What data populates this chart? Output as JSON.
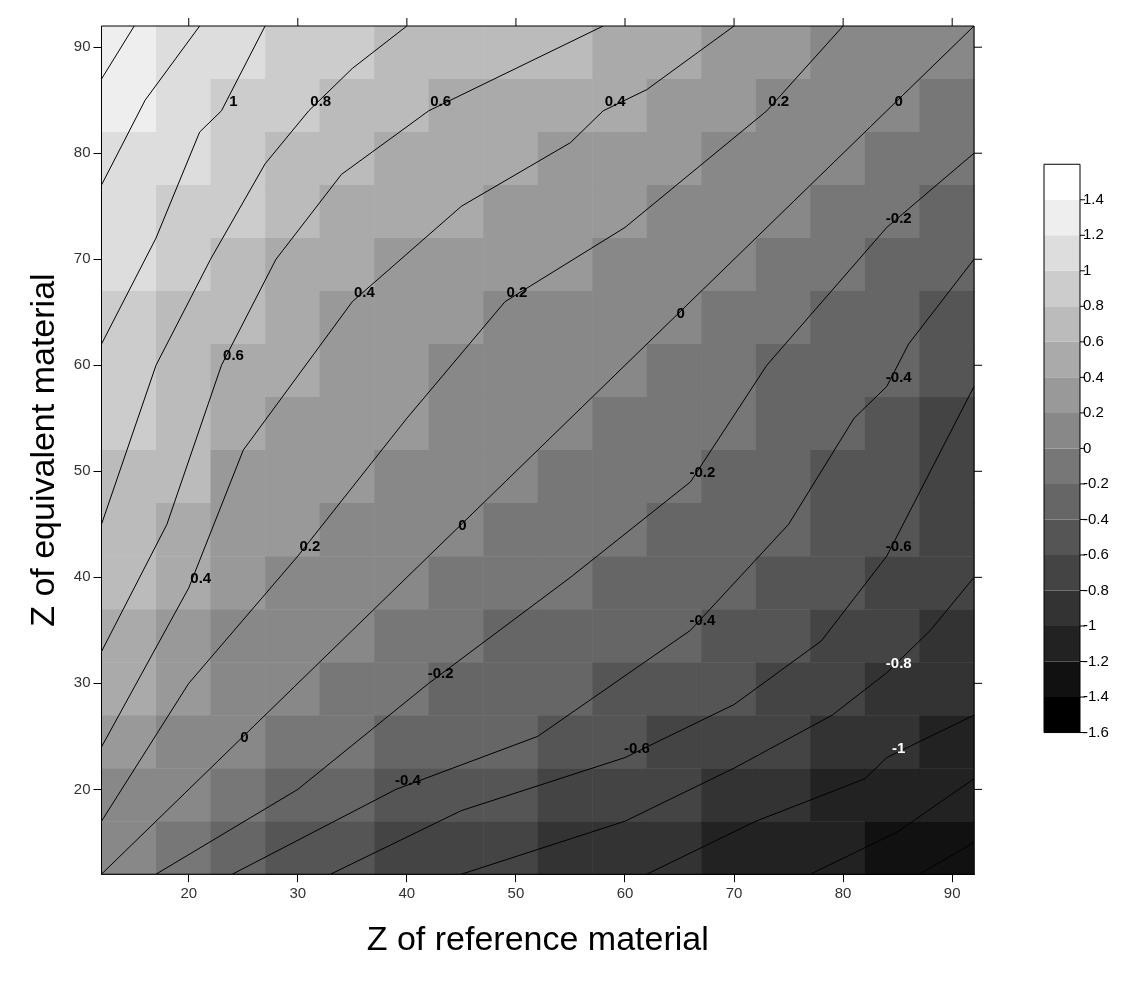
{
  "chart_data": {
    "type": "heatmap",
    "xlabel": "Z of reference material",
    "ylabel": "Z of equivalent material",
    "xlim": [
      12,
      92
    ],
    "ylim": [
      12,
      92
    ],
    "xticks": [
      20,
      30,
      40,
      50,
      60,
      70,
      80,
      90
    ],
    "yticks": [
      20,
      30,
      40,
      50,
      60,
      70,
      80,
      90
    ],
    "clim": [
      -1.6,
      1.6
    ],
    "cticks": [
      -1.6,
      -1.4,
      -1.2,
      -1,
      -0.8,
      -0.6,
      -0.4,
      -0.2,
      0,
      0.2,
      0.4,
      0.6,
      0.8,
      1,
      1.2,
      1.4
    ],
    "marker": "none",
    "cells": [
      [
        1.36,
        1.18,
        1.02,
        0.93,
        0.84,
        0.77,
        0.72,
        0.66,
        0.61,
        0.53,
        0.44,
        0.35,
        0.26,
        0.17,
        0.09,
        0
      ],
      [
        1.25,
        1.09,
        0.96,
        0.85,
        0.75,
        0.66,
        0.58,
        0.52,
        0.46,
        0.4,
        0.33,
        0.26,
        0.18,
        0.09,
        0,
        -0.09
      ],
      [
        1.16,
        1.01,
        0.88,
        0.75,
        0.63,
        0.56,
        0.5,
        0.44,
        0.37,
        0.3,
        0.24,
        0.17,
        0.09,
        0,
        -0.09,
        -0.17
      ],
      [
        1.1,
        0.95,
        0.8,
        0.66,
        0.55,
        0.47,
        0.4,
        0.34,
        0.29,
        0.23,
        0.16,
        0.08,
        0,
        -0.09,
        -0.18,
        -0.26
      ],
      [
        1.03,
        0.88,
        0.71,
        0.57,
        0.48,
        0.39,
        0.33,
        0.26,
        0.2,
        0.13,
        0.07,
        0,
        -0.08,
        -0.17,
        -0.26,
        -0.35
      ],
      [
        0.96,
        0.79,
        0.63,
        0.5,
        0.39,
        0.32,
        0.25,
        0.18,
        0.12,
        0.06,
        0,
        -0.07,
        -0.16,
        -0.24,
        -0.33,
        -0.44
      ],
      [
        0.88,
        0.71,
        0.56,
        0.42,
        0.34,
        0.26,
        0.19,
        0.13,
        0.06,
        0,
        -0.06,
        -0.13,
        -0.23,
        -0.3,
        -0.4,
        -0.53
      ],
      [
        0.82,
        0.66,
        0.48,
        0.36,
        0.28,
        0.2,
        0.13,
        0.07,
        0,
        -0.06,
        -0.12,
        -0.2,
        -0.29,
        -0.37,
        -0.46,
        -0.61
      ],
      [
        0.77,
        0.6,
        0.39,
        0.31,
        0.22,
        0.15,
        0.07,
        0,
        -0.07,
        -0.13,
        -0.18,
        -0.26,
        -0.34,
        -0.44,
        -0.52,
        -0.66
      ],
      [
        0.71,
        0.52,
        0.35,
        0.25,
        0.16,
        0.08,
        0,
        -0.07,
        -0.13,
        -0.19,
        -0.25,
        -0.33,
        -0.4,
        -0.5,
        -0.58,
        -0.72
      ],
      [
        0.63,
        0.43,
        0.29,
        0.17,
        0.09,
        0,
        -0.08,
        -0.15,
        -0.2,
        -0.26,
        -0.32,
        -0.39,
        -0.47,
        -0.56,
        -0.66,
        -0.77
      ],
      [
        0.53,
        0.34,
        0.19,
        0.09,
        0,
        -0.09,
        -0.16,
        -0.22,
        -0.28,
        -0.34,
        -0.39,
        -0.48,
        -0.55,
        -0.63,
        -0.75,
        -0.84
      ],
      [
        0.42,
        0.21,
        0.1,
        0,
        -0.09,
        -0.17,
        -0.25,
        -0.31,
        -0.36,
        -0.42,
        -0.5,
        -0.57,
        -0.66,
        -0.75,
        -0.85,
        -0.93
      ],
      [
        0.3,
        0.13,
        0,
        -0.1,
        -0.19,
        -0.29,
        -0.35,
        -0.39,
        -0.48,
        -0.56,
        -0.63,
        -0.71,
        -0.8,
        -0.88,
        -0.96,
        -1.02
      ],
      [
        0.17,
        0,
        -0.13,
        -0.21,
        -0.34,
        -0.43,
        -0.52,
        -0.6,
        -0.66,
        -0.71,
        -0.79,
        -0.88,
        -0.95,
        -1.01,
        -1.09,
        -1.18
      ],
      [
        0,
        -0.17,
        -0.3,
        -0.42,
        -0.53,
        -0.63,
        -0.71,
        -0.77,
        -0.82,
        -0.88,
        -0.96,
        -1.03,
        -1.1,
        -1.16,
        -1.25,
        -1.36
      ]
    ],
    "series": [
      {
        "type": "line",
        "color": "#000000",
        "x": [
          12,
          15
        ],
        "values": [
          87,
          92
        ]
      },
      {
        "type": "line",
        "color": "#000000",
        "x": [
          12,
          16,
          21
        ],
        "values": [
          77,
          85,
          92
        ]
      },
      {
        "type": "line",
        "color": "#000000",
        "x": [
          12,
          17,
          21,
          23,
          27
        ],
        "values": [
          62,
          72,
          82,
          84,
          92
        ]
      },
      {
        "type": "line",
        "color": "#000000",
        "x": [
          12,
          17,
          22,
          27,
          31,
          35,
          40
        ],
        "values": [
          45,
          60,
          70,
          79,
          84,
          88,
          92
        ]
      },
      {
        "type": "line",
        "color": "#000000",
        "x": [
          12,
          18,
          23,
          28,
          34,
          42,
          50,
          58
        ],
        "values": [
          33,
          45,
          60,
          70,
          78,
          84,
          88,
          92
        ]
      },
      {
        "type": "line",
        "color": "#000000",
        "x": [
          12,
          20,
          25,
          35,
          45,
          55,
          58,
          62,
          70
        ],
        "values": [
          24,
          39,
          52,
          66,
          75,
          81,
          84,
          86,
          92
        ]
      },
      {
        "type": "line",
        "color": "#000000",
        "x": [
          12,
          20,
          30,
          40,
          49,
          60,
          73,
          80
        ],
        "values": [
          17,
          30,
          42,
          55,
          66,
          73,
          84,
          92
        ]
      },
      {
        "type": "line",
        "color": "#000000",
        "x": [
          12,
          92
        ],
        "values": [
          12,
          92
        ]
      },
      {
        "type": "line",
        "color": "#000000",
        "x": [
          17,
          30,
          42,
          55,
          66,
          73,
          84,
          92
        ],
        "values": [
          12,
          20,
          30,
          40,
          49,
          60,
          73,
          80
        ]
      },
      {
        "type": "line",
        "color": "#000000",
        "x": [
          24,
          39,
          52,
          66,
          75,
          81,
          84,
          86,
          92
        ],
        "values": [
          12,
          20,
          25,
          35,
          45,
          55,
          58,
          62,
          70
        ]
      },
      {
        "type": "line",
        "color": "#000000",
        "x": [
          33,
          45,
          60,
          70,
          78,
          84,
          88,
          92
        ],
        "values": [
          12,
          18,
          23,
          28,
          34,
          42,
          50,
          58
        ]
      },
      {
        "type": "line",
        "color": "#000000",
        "x": [
          45,
          60,
          70,
          79,
          84,
          88,
          92
        ],
        "values": [
          12,
          17,
          22,
          27,
          31,
          35,
          40
        ]
      },
      {
        "type": "line",
        "color": "#000000",
        "x": [
          62,
          72,
          82,
          84,
          92
        ],
        "values": [
          12,
          17,
          21,
          23,
          27
        ]
      },
      {
        "type": "line",
        "color": "#000000",
        "x": [
          77,
          85,
          92
        ],
        "values": [
          12,
          16,
          21
        ]
      },
      {
        "type": "line",
        "color": "#000000",
        "x": [
          87,
          92
        ],
        "values": [
          12,
          15
        ]
      }
    ],
    "annotations": [
      {
        "text": "1",
        "x": 23,
        "y": 84
      },
      {
        "text": "0.8",
        "x": 31,
        "y": 84
      },
      {
        "text": "0.6",
        "x": 42,
        "y": 84
      },
      {
        "text": "0.4",
        "x": 58,
        "y": 84
      },
      {
        "text": "0.2",
        "x": 73,
        "y": 84
      },
      {
        "text": "0",
        "x": 84,
        "y": 84
      },
      {
        "text": "-0.2",
        "x": 84,
        "y": 73
      },
      {
        "text": "0.4",
        "x": 35,
        "y": 66
      },
      {
        "text": "0.2",
        "x": 49,
        "y": 66
      },
      {
        "text": "0",
        "x": 64,
        "y": 64
      },
      {
        "text": "0.6",
        "x": 23,
        "y": 60
      },
      {
        "text": "-0.4",
        "x": 84,
        "y": 58
      },
      {
        "text": "-0.2",
        "x": 66,
        "y": 49
      },
      {
        "text": "0",
        "x": 44,
        "y": 44
      },
      {
        "text": "0.2",
        "x": 30,
        "y": 42
      },
      {
        "text": "0.4",
        "x": 20,
        "y": 39
      },
      {
        "text": "-0.6",
        "x": 84,
        "y": 42
      },
      {
        "text": "-0.4",
        "x": 66,
        "y": 35
      },
      {
        "text": "-0.2",
        "x": 42,
        "y": 30
      },
      {
        "text": "-0.8",
        "x": 84,
        "y": 31
      },
      {
        "text": "0",
        "x": 24,
        "y": 24
      },
      {
        "text": "-0.6",
        "x": 60,
        "y": 23
      },
      {
        "text": "-0.4",
        "x": 39,
        "y": 20
      },
      {
        "text": "-1",
        "x": 84,
        "y": 23
      }
    ]
  }
}
